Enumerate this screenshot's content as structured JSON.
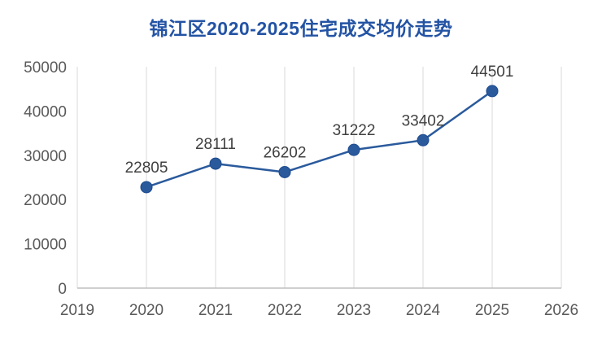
{
  "page": {
    "background": "#ffffff"
  },
  "chart_data": {
    "type": "line",
    "title": "锦江区2020-2025住宅成交均价走势",
    "x": [
      2020,
      2021,
      2022,
      2023,
      2024,
      2025
    ],
    "values": [
      22805,
      28111,
      26202,
      31222,
      33402,
      44501
    ],
    "data_labels": [
      "22805",
      "28111",
      "26202",
      "31222",
      "33402",
      "44501"
    ],
    "x_ticks": [
      "2019",
      "2020",
      "2021",
      "2022",
      "2023",
      "2024",
      "2025",
      "2026"
    ],
    "y_ticks": [
      "0",
      "10000",
      "20000",
      "30000",
      "40000",
      "50000"
    ],
    "y_tick_values": [
      0,
      10000,
      20000,
      30000,
      40000,
      50000
    ],
    "xlim": [
      2019,
      2026
    ],
    "ylim": [
      0,
      50000
    ],
    "grid": "vertical-only",
    "legend": "none",
    "colors": {
      "line": "#2a5a9c",
      "marker": "#2a5a9c",
      "marker_edge": "#1e4b8f",
      "title": "#2353a4",
      "tick_label": "#595959",
      "data_label": "#404040",
      "grid_line": "#d9d9d9",
      "axis_line": "#bfbfbf"
    }
  }
}
